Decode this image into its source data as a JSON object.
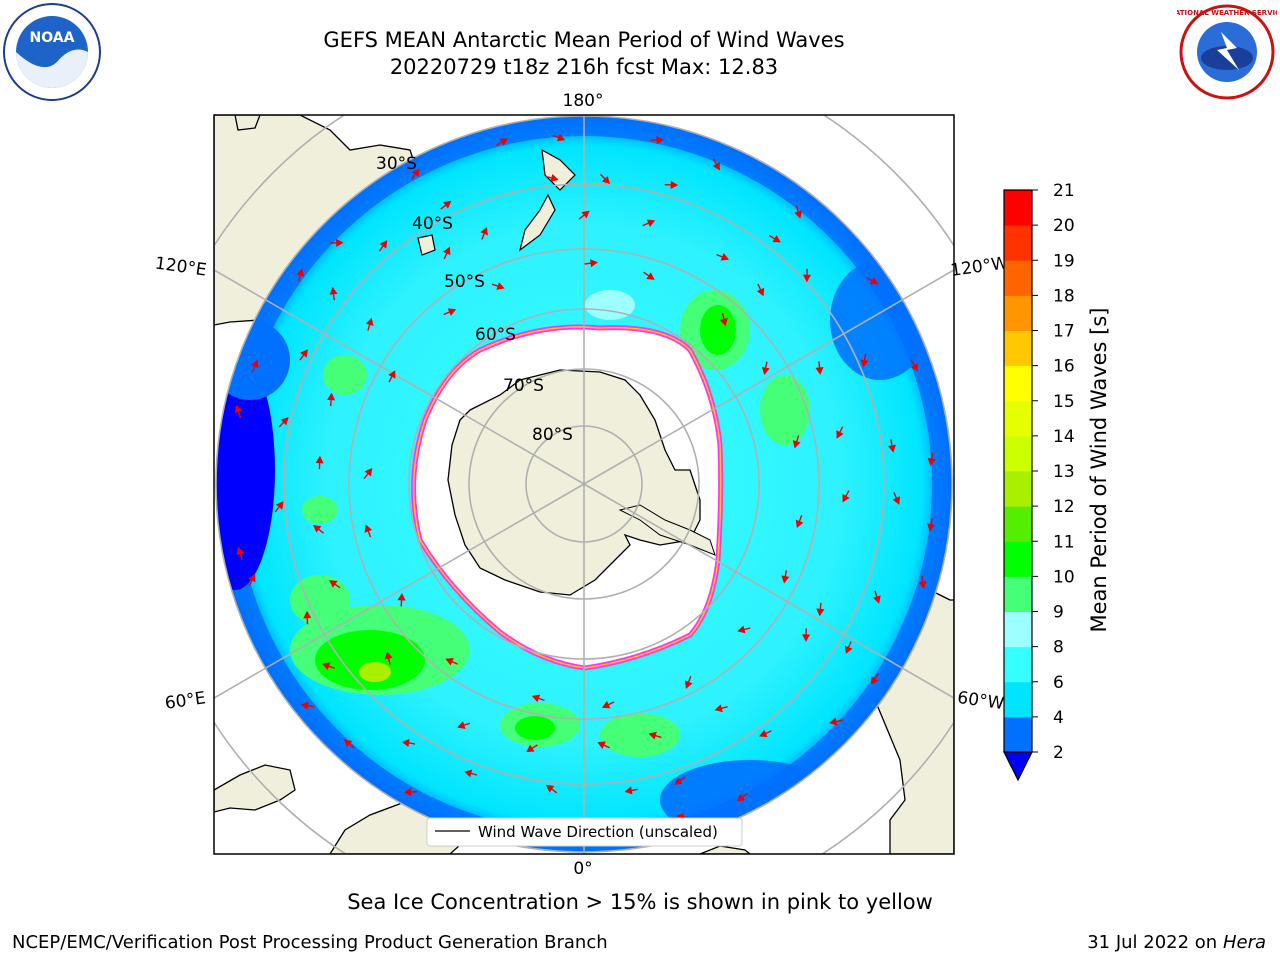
{
  "title_line1": "GEFS MEAN Antarctic Mean Period of Wind Waves",
  "title_line2": "20220729 t18z 216h fcst   Max: 12.83",
  "map": {
    "longitude_labels": [
      "180°",
      "120°E",
      "120°W",
      "60°E",
      "60°W",
      "0°"
    ],
    "latitude_labels": [
      "30°S",
      "40°S",
      "50°S",
      "60°S",
      "70°S",
      "80°S"
    ],
    "legend_label": "Wind Wave Direction (unscaled)"
  },
  "colorbar": {
    "label": "Mean Period of Wind Waves [s]",
    "ticks": [
      "2",
      "4",
      "6",
      "8",
      "9",
      "10",
      "11",
      "12",
      "13",
      "14",
      "15",
      "16",
      "17",
      "18",
      "19",
      "20",
      "21"
    ],
    "colors": [
      "#0000ff",
      "#0070ff",
      "#00e5ff",
      "#35ffff",
      "#9dffff",
      "#45ff78",
      "#00ff00",
      "#55ee00",
      "#aaee00",
      "#ccff00",
      "#e6ff00",
      "#ffff00",
      "#ffc800",
      "#ff9600",
      "#ff6400",
      "#ff3200",
      "#ff0000"
    ]
  },
  "caption": "Sea Ice Concentration > 15% is shown in pink to yellow",
  "footer_left": "NCEP/EMC/Verification Post Processing Product Generation Branch",
  "footer_right_prefix": "31 Jul 2022 on ",
  "footer_right_host": "Hera",
  "logos": {
    "noaa_text": "NOAA",
    "nws_text": "NATIONAL WEATHER SERVICE"
  }
}
